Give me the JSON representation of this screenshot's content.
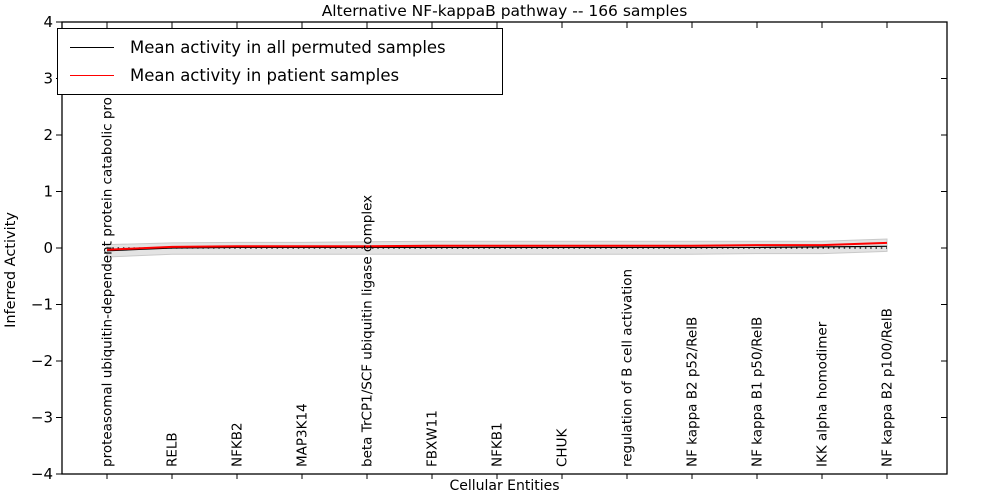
{
  "title": "Alternative NF-kappaB pathway -- 166 samples",
  "legend": {
    "items": [
      {
        "label": "Mean activity in all permuted samples",
        "color": "#000000"
      },
      {
        "label": "Mean activity in patient samples",
        "color": "#ff0000"
      }
    ]
  },
  "axes": {
    "xlabel": "Cellular Entities",
    "ylabel": "Inferred Activity",
    "yticks": [
      "4",
      "3",
      "2",
      "1",
      "0",
      "−1",
      "−2",
      "−3",
      "−4"
    ],
    "ylim": [
      -4,
      4
    ]
  },
  "chart_data": {
    "type": "line",
    "title": "Alternative NF-kappaB pathway -- 166 samples",
    "xlabel": "Cellular Entities",
    "ylabel": "Inferred Activity",
    "ylim": [
      -4,
      4
    ],
    "grid": false,
    "legend_position": "upper left",
    "categories": [
      "proteasomal ubiquitin-dependent protein catabolic pro",
      "RELB",
      "NFKB2",
      "MAP3K14",
      "beta TrCP1/SCF ubiquitin ligase complex",
      "FBXW11",
      "NFKB1",
      "CHUK",
      "regulation of B cell activation",
      "NF kappa B2 p52/RelB",
      "NF kappa B1 p50/RelB",
      "IKK alpha homodimer",
      "NF kappa B2 p100/RelB"
    ],
    "series": [
      {
        "name": "Mean activity in all permuted samples",
        "color": "#000000",
        "values": [
          -0.05,
          0.0,
          0.01,
          0.01,
          0.01,
          0.01,
          0.01,
          0.01,
          0.01,
          0.01,
          0.01,
          0.02,
          0.03
        ]
      },
      {
        "name": "Mean activity in patient samples",
        "color": "#ff0000",
        "values": [
          -0.03,
          0.02,
          0.03,
          0.03,
          0.03,
          0.04,
          0.04,
          0.04,
          0.04,
          0.04,
          0.05,
          0.05,
          0.09
        ]
      }
    ],
    "band": {
      "color": "#e3e3e3",
      "edge_color": "#c9c9c9",
      "upper": [
        0.06,
        0.09,
        0.1,
        0.1,
        0.11,
        0.12,
        0.12,
        0.12,
        0.12,
        0.12,
        0.12,
        0.12,
        0.16
      ],
      "lower": [
        -0.16,
        -0.11,
        -0.11,
        -0.11,
        -0.11,
        -0.11,
        -0.11,
        -0.11,
        -0.11,
        -0.11,
        -0.1,
        -0.1,
        -0.06
      ]
    },
    "zero_line": {
      "value": 0,
      "style": "dotted",
      "color": "#000000"
    }
  }
}
